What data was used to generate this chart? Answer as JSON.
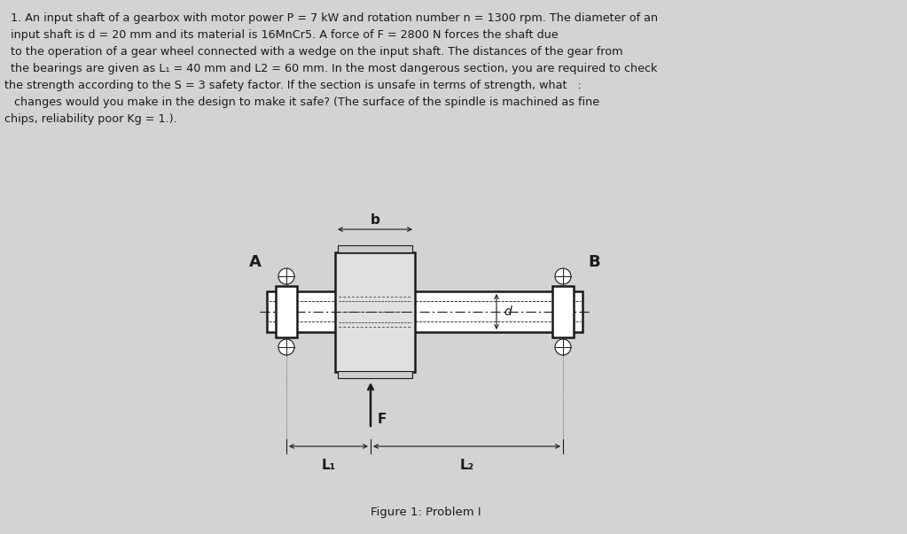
{
  "bg_color": "#d3d3d3",
  "text_color": "#000000",
  "problem_text_lines": [
    "1. An input shaft of a gearbox with motor power P = 7 kW and rotation number n = 1300 rpm. The diameter of an",
    "input shaft is d = 20 mm and its material is 16MnCr5. A force of F = 2800 N forces the shaft due",
    "to the operation of a gear wheel connected with a wedge on the input shaft. The distances of the gear from",
    "the bearings are given as L₁ = 40 mm and L2 = 60 mm. In the most dangerous section, you are required to check",
    "the strength according to the S = 3 safety factor. If the section is unsafe in terms of strength, what   :",
    " changes would you make in the design to make it safe? (The surface of the spindle is machined as fine",
    "chips, reliability poor Kg = 1.)."
  ],
  "figure_caption": "Figure 1: Problem I",
  "draw_color": "#1a1a1a"
}
